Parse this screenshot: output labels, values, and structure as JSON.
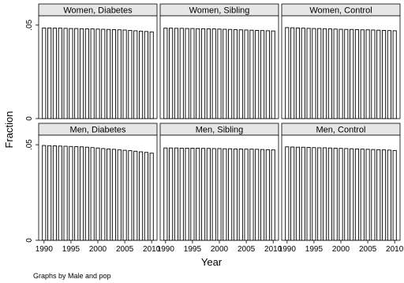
{
  "chart_data": {
    "type": "bar",
    "xlabel": "Year",
    "ylabel": "Fraction",
    "note": "Graphs by Male and pop",
    "ylim": [
      0,
      0.055
    ],
    "yticks": [
      {
        "value": 0,
        "label": "0"
      },
      {
        "value": 0.05,
        "label": ".05"
      }
    ],
    "xlim": [
      1989,
      2011
    ],
    "xticks": [
      1990,
      1995,
      2000,
      2005,
      2010
    ],
    "x": [
      1990,
      1991,
      1992,
      1993,
      1994,
      1995,
      1996,
      1997,
      1998,
      1999,
      2000,
      2001,
      2002,
      2003,
      2004,
      2005,
      2006,
      2007,
      2008,
      2009,
      2010
    ],
    "grid": false,
    "panels": [
      {
        "title": "Women, Diabetes",
        "values": [
          0.0485,
          0.0485,
          0.0484,
          0.0484,
          0.0483,
          0.0482,
          0.0482,
          0.0481,
          0.048,
          0.048,
          0.0479,
          0.0478,
          0.0477,
          0.0476,
          0.0475,
          0.0474,
          0.0472,
          0.047,
          0.0468,
          0.0466,
          0.0464
        ]
      },
      {
        "title": "Women, Sibling",
        "values": [
          0.0484,
          0.0484,
          0.0483,
          0.0483,
          0.0482,
          0.0482,
          0.0481,
          0.0481,
          0.048,
          0.048,
          0.0479,
          0.0478,
          0.0477,
          0.0476,
          0.0475,
          0.0474,
          0.0473,
          0.0472,
          0.0471,
          0.047,
          0.0469
        ]
      },
      {
        "title": "Women, Control",
        "values": [
          0.0487,
          0.0486,
          0.0485,
          0.0484,
          0.0483,
          0.0482,
          0.0482,
          0.0481,
          0.048,
          0.0479,
          0.0478,
          0.0477,
          0.0477,
          0.0476,
          0.0475,
          0.0475,
          0.0474,
          0.0473,
          0.0472,
          0.0471,
          0.047
        ]
      },
      {
        "title": "Men, Diabetes",
        "values": [
          0.0496,
          0.0495,
          0.0494,
          0.0493,
          0.0492,
          0.0491,
          0.049,
          0.0489,
          0.0487,
          0.0485,
          0.0483,
          0.048,
          0.0478,
          0.0476,
          0.0473,
          0.0471,
          0.0469,
          0.0466,
          0.0463,
          0.046,
          0.0456
        ]
      },
      {
        "title": "Men, Sibling",
        "values": [
          0.0483,
          0.0483,
          0.0483,
          0.0482,
          0.0482,
          0.0482,
          0.0482,
          0.0481,
          0.0481,
          0.048,
          0.048,
          0.0479,
          0.0479,
          0.0478,
          0.0478,
          0.0477,
          0.0477,
          0.0476,
          0.0475,
          0.0474,
          0.0473
        ]
      },
      {
        "title": "Men, Control",
        "values": [
          0.0489,
          0.0488,
          0.0487,
          0.0487,
          0.0486,
          0.0485,
          0.0484,
          0.0484,
          0.0483,
          0.0482,
          0.0481,
          0.048,
          0.0479,
          0.0478,
          0.0477,
          0.0476,
          0.0475,
          0.0474,
          0.0473,
          0.0472,
          0.047
        ]
      }
    ]
  }
}
